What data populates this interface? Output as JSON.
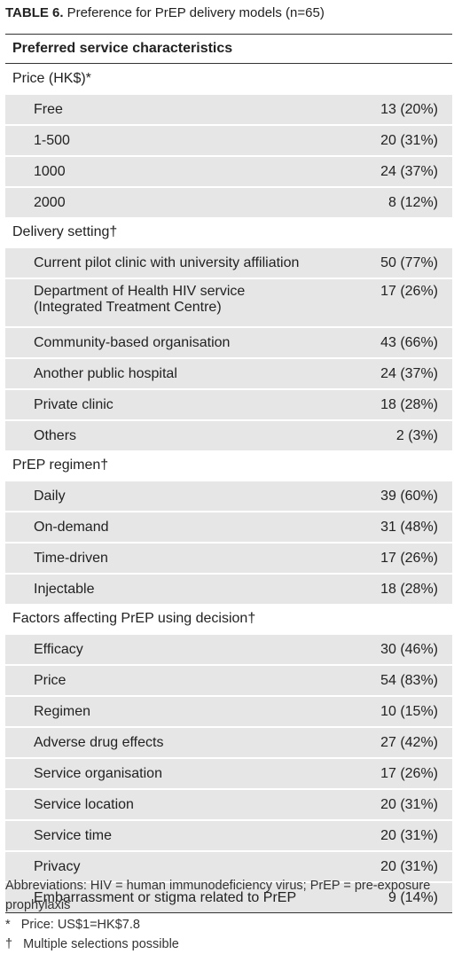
{
  "title": {
    "label": "TABLE 6.",
    "text": "Preference for PrEP delivery models (n=65)"
  },
  "table": {
    "header": "Preferred service characteristics",
    "sections": [
      {
        "label": "Price (HK$)*",
        "rows": [
          [
            "Free",
            "13 (20%)"
          ],
          [
            "1-500",
            "20 (31%)"
          ],
          [
            "1000",
            "24 (37%)"
          ],
          [
            "2000",
            "8 (12%)"
          ]
        ]
      },
      {
        "label": "Delivery setting†",
        "rows": [
          [
            "Current pilot clinic with university affiliation",
            "50 (77%)"
          ],
          [
            "Department of Health HIV service\n(Integrated Treatment Centre)",
            "17 (26%)"
          ],
          [
            "Community-based organisation",
            "43 (66%)"
          ],
          [
            "Another public hospital",
            "24 (37%)"
          ],
          [
            "Private clinic",
            "18 (28%)"
          ],
          [
            "Others",
            "2 (3%)"
          ]
        ]
      },
      {
        "label": "PrEP regimen†",
        "rows": [
          [
            "Daily",
            "39 (60%)"
          ],
          [
            "On-demand",
            "31 (48%)"
          ],
          [
            "Time-driven",
            "17 (26%)"
          ],
          [
            "Injectable",
            "18 (28%)"
          ]
        ]
      },
      {
        "label": "Factors affecting PrEP using decision†",
        "rows": [
          [
            "Efficacy",
            "30 (46%)"
          ],
          [
            "Price",
            "54 (83%)"
          ],
          [
            "Regimen",
            "10 (15%)"
          ],
          [
            "Adverse drug effects",
            "27 (42%)"
          ],
          [
            "Service organisation",
            "17 (26%)"
          ],
          [
            "Service location",
            "20 (31%)"
          ],
          [
            "Service time",
            "20 (31%)"
          ],
          [
            "Privacy",
            "20 (31%)"
          ],
          [
            "Embarrassment or stigma related to PrEP",
            "9 (14%)"
          ]
        ]
      }
    ]
  },
  "footnotes": [
    "Abbreviations: HIV = human immunodeficiency virus; PrEP = pre-exposure prophylaxis",
    "*   Price: US$1=HK$7.8",
    "†   Multiple selections possible"
  ]
}
